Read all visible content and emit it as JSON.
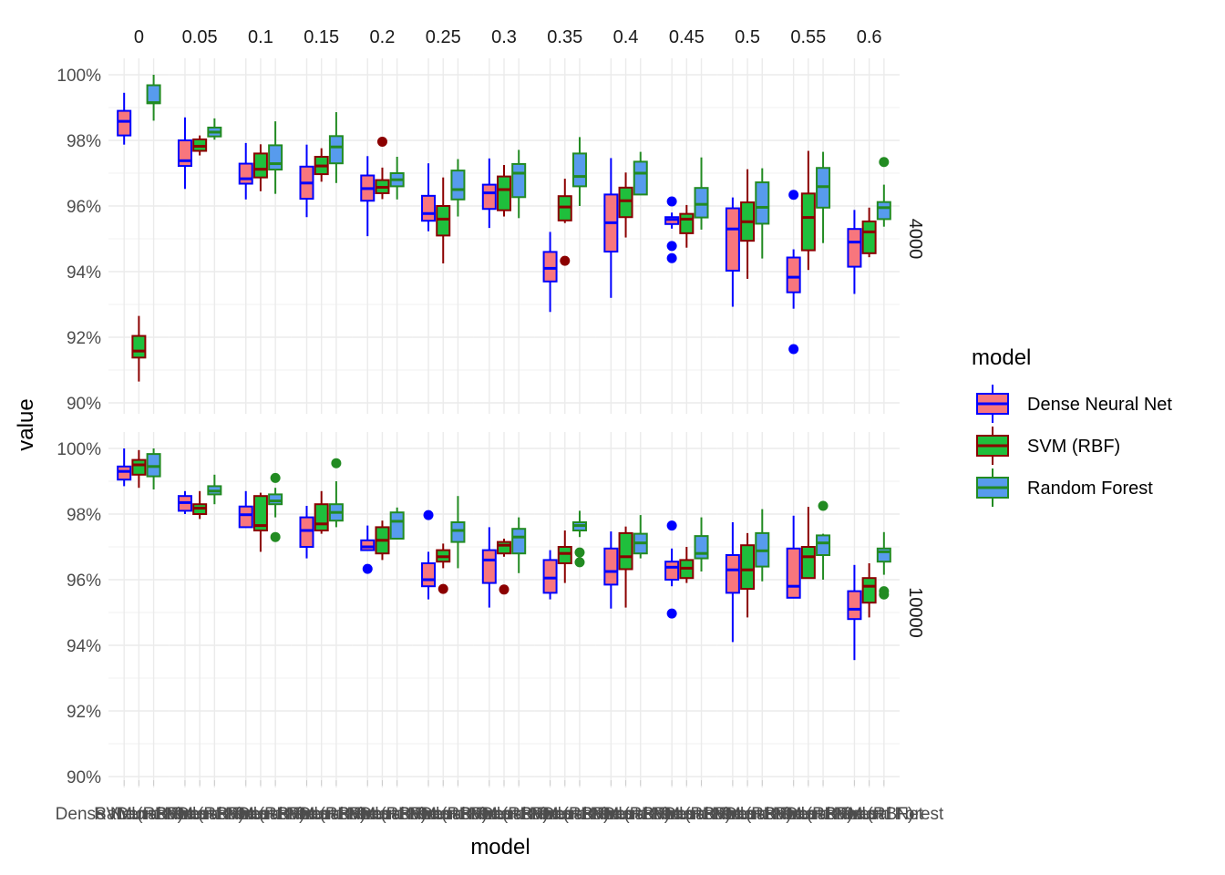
{
  "chart_data": {
    "type": "boxplot",
    "title": "",
    "xlabel": "model",
    "ylabel": "value",
    "ylim": [
      0.9,
      1.0
    ],
    "y_ticks": [
      "90%",
      "92%",
      "94%",
      "96%",
      "98%",
      "100%"
    ],
    "grid": true,
    "legend": {
      "title": "model",
      "position": "right"
    },
    "facet_cols": [
      "0",
      "0.05",
      "0.1",
      "0.15",
      "0.2",
      "0.25",
      "0.3",
      "0.35",
      "0.4",
      "0.45",
      "0.5",
      "0.55",
      "0.6"
    ],
    "facet_rows": [
      "4000",
      "10000"
    ],
    "x_tick_labels": [
      "Dense Neural Net",
      "SVM (RBF)",
      "Random Forest"
    ],
    "series": [
      {
        "name": "Dense Neural Net",
        "fill": "#f8767d",
        "stroke": "#0000ff"
      },
      {
        "name": "SVM (RBF)",
        "fill": "#1fbf3c",
        "stroke": "#8b0000"
      },
      {
        "name": "Random Forest",
        "fill": "#579bed",
        "stroke": "#228b22"
      }
    ],
    "box_summary_order": [
      "lower_whisker",
      "q1",
      "median",
      "q3",
      "upper_whisker"
    ],
    "panels": {
      "4000": [
        [
          [
            0.9787,
            0.9815,
            0.9858,
            0.989,
            0.9945,
            []
          ],
          [
            0.9065,
            0.9138,
            0.9158,
            0.9204,
            0.9265,
            []
          ],
          [
            0.986,
            0.9913,
            0.9915,
            0.9968,
            1.0,
            []
          ]
        ],
        [
          [
            0.9652,
            0.9722,
            0.9738,
            0.98,
            0.987,
            []
          ],
          [
            0.9754,
            0.9768,
            0.9782,
            0.9803,
            0.9815,
            []
          ],
          [
            0.9802,
            0.9812,
            0.9825,
            0.9839,
            0.9867,
            []
          ]
        ],
        [
          [
            0.962,
            0.9668,
            0.9683,
            0.9729,
            0.9792,
            []
          ],
          [
            0.9645,
            0.9687,
            0.9712,
            0.976,
            0.9788,
            []
          ],
          [
            0.9637,
            0.9711,
            0.9729,
            0.9785,
            0.9858,
            []
          ]
        ],
        [
          [
            0.9566,
            0.9622,
            0.967,
            0.972,
            0.9787,
            []
          ],
          [
            0.9674,
            0.9697,
            0.9722,
            0.975,
            0.9776,
            []
          ],
          [
            0.967,
            0.973,
            0.978,
            0.9813,
            0.9886,
            []
          ]
        ],
        [
          [
            0.9508,
            0.9616,
            0.9653,
            0.9693,
            0.9752,
            []
          ],
          [
            0.9621,
            0.9639,
            0.9657,
            0.9679,
            0.9717,
            [
              0.9796
            ]
          ],
          [
            0.962,
            0.966,
            0.968,
            0.97,
            0.975,
            []
          ]
        ],
        [
          [
            0.9523,
            0.9555,
            0.9577,
            0.9631,
            0.973,
            []
          ],
          [
            0.9425,
            0.951,
            0.956,
            0.96,
            0.9687,
            []
          ],
          [
            0.9568,
            0.962,
            0.965,
            0.9708,
            0.9743,
            []
          ]
        ],
        [
          [
            0.9533,
            0.9591,
            0.964,
            0.9665,
            0.9745,
            []
          ],
          [
            0.9568,
            0.9587,
            0.965,
            0.969,
            0.9725,
            []
          ],
          [
            0.9563,
            0.9627,
            0.97,
            0.9728,
            0.9771,
            []
          ]
        ],
        [
          [
            0.9277,
            0.937,
            0.941,
            0.946,
            0.9521,
            []
          ],
          [
            0.9548,
            0.9556,
            0.9597,
            0.963,
            0.9683,
            [
              0.9433
            ]
          ],
          [
            0.96,
            0.966,
            0.969,
            0.976,
            0.981,
            []
          ]
        ],
        [
          [
            0.932,
            0.9461,
            0.9549,
            0.9635,
            0.9746,
            []
          ],
          [
            0.9504,
            0.9566,
            0.9616,
            0.9656,
            0.9702,
            []
          ],
          [
            0.9633,
            0.9635,
            0.97,
            0.9735,
            0.9765,
            []
          ]
        ],
        [
          [
            0.9531,
            0.9545,
            0.9559,
            0.9566,
            0.958,
            [
              0.9614,
              0.9478,
              0.9441
            ]
          ],
          [
            0.9473,
            0.9517,
            0.956,
            0.9576,
            0.9603,
            []
          ],
          [
            0.9528,
            0.9565,
            0.9605,
            0.9655,
            0.9748,
            []
          ]
        ],
        [
          [
            0.9293,
            0.9403,
            0.953,
            0.9593,
            0.9626,
            []
          ],
          [
            0.9378,
            0.9494,
            0.9552,
            0.9611,
            0.9712,
            []
          ],
          [
            0.944,
            0.9546,
            0.9596,
            0.9672,
            0.9715,
            []
          ]
        ],
        [
          [
            0.9287,
            0.9337,
            0.9383,
            0.9443,
            0.9468,
            [
              0.9634,
              0.9164
            ]
          ],
          [
            0.9405,
            0.9465,
            0.9565,
            0.9638,
            0.9768,
            []
          ],
          [
            0.9487,
            0.9595,
            0.9659,
            0.9716,
            0.9765,
            []
          ]
        ],
        [
          [
            0.9332,
            0.9415,
            0.949,
            0.953,
            0.9588,
            []
          ],
          [
            0.9444,
            0.9456,
            0.9521,
            0.9553,
            0.9595,
            []
          ],
          [
            0.9537,
            0.956,
            0.9595,
            0.9612,
            0.9665,
            [
              0.9734
            ]
          ]
        ]
      ],
      "10000": [
        [
          [
            0.9885,
            0.9905,
            0.993,
            0.9945,
            1.0,
            []
          ],
          [
            0.988,
            0.992,
            0.995,
            0.9965,
            0.9995,
            []
          ],
          [
            0.9875,
            0.9915,
            0.9945,
            0.9983,
            1.0,
            []
          ]
        ],
        [
          [
            0.98,
            0.981,
            0.9835,
            0.9855,
            0.987,
            []
          ],
          [
            0.9785,
            0.98,
            0.9818,
            0.983,
            0.987,
            []
          ],
          [
            0.983,
            0.986,
            0.987,
            0.9885,
            0.992,
            []
          ]
        ],
        [
          [
            0.976,
            0.976,
            0.9798,
            0.9823,
            0.987,
            []
          ],
          [
            0.9685,
            0.975,
            0.9765,
            0.9855,
            0.9865,
            []
          ],
          [
            0.979,
            0.983,
            0.984,
            0.986,
            0.988,
            [
              0.991,
              0.973
            ]
          ]
        ],
        [
          [
            0.9665,
            0.97,
            0.975,
            0.979,
            0.9825,
            []
          ],
          [
            0.974,
            0.975,
            0.977,
            0.983,
            0.987,
            []
          ],
          [
            0.976,
            0.978,
            0.9805,
            0.983,
            0.99,
            [
              0.9955
            ]
          ]
        ],
        [
          [
            0.969,
            0.969,
            0.97,
            0.972,
            0.9765,
            [
              0.9633
            ]
          ],
          [
            0.966,
            0.968,
            0.972,
            0.976,
            0.978,
            []
          ],
          [
            0.974,
            0.9725,
            0.9778,
            0.9805,
            0.982,
            []
          ]
        ],
        [
          [
            0.954,
            0.958,
            0.96,
            0.965,
            0.9685,
            [
              0.9797
            ]
          ],
          [
            0.9635,
            0.9655,
            0.967,
            0.969,
            0.971,
            [
              0.9572
            ]
          ],
          [
            0.9635,
            0.9715,
            0.975,
            0.9775,
            0.9855,
            []
          ]
        ],
        [
          [
            0.9515,
            0.959,
            0.966,
            0.969,
            0.976,
            []
          ],
          [
            0.967,
            0.968,
            0.9705,
            0.9715,
            0.9725,
            [
              0.957
            ]
          ],
          [
            0.962,
            0.968,
            0.973,
            0.9755,
            0.979,
            []
          ]
        ],
        [
          [
            0.954,
            0.956,
            0.9605,
            0.966,
            0.969,
            []
          ],
          [
            0.959,
            0.965,
            0.968,
            0.97,
            0.975,
            []
          ],
          [
            0.973,
            0.975,
            0.9765,
            0.9775,
            0.981,
            [
              0.9683,
              0.9653
            ]
          ]
        ],
        [
          [
            0.9512,
            0.9585,
            0.9625,
            0.9695,
            0.9747,
            []
          ],
          [
            0.9515,
            0.9632,
            0.967,
            0.9742,
            0.9762,
            []
          ],
          [
            0.9665,
            0.968,
            0.9712,
            0.974,
            0.9797,
            []
          ]
        ],
        [
          [
            0.958,
            0.96,
            0.9638,
            0.9655,
            0.9695,
            [
              0.9765,
              0.9497
            ]
          ],
          [
            0.959,
            0.9605,
            0.9635,
            0.966,
            0.97,
            []
          ],
          [
            0.9625,
            0.9665,
            0.968,
            0.9733,
            0.979,
            []
          ]
        ],
        [
          [
            0.941,
            0.956,
            0.963,
            0.9675,
            0.9775,
            []
          ],
          [
            0.9485,
            0.9572,
            0.963,
            0.9705,
            0.9742,
            []
          ],
          [
            0.9595,
            0.964,
            0.9688,
            0.9742,
            0.9815,
            []
          ]
        ],
        [
          [
            0.9545,
            0.9545,
            0.958,
            0.9695,
            0.9795,
            []
          ],
          [
            0.9612,
            0.9605,
            0.967,
            0.97,
            0.9822,
            []
          ],
          [
            0.96,
            0.9675,
            0.9712,
            0.9735,
            0.974,
            [
              0.9825
            ]
          ]
        ],
        [
          [
            0.9355,
            0.948,
            0.951,
            0.9565,
            0.9645,
            []
          ],
          [
            0.9485,
            0.953,
            0.958,
            0.9605,
            0.965,
            []
          ],
          [
            0.9615,
            0.9655,
            0.9685,
            0.9695,
            0.9745,
            [
              0.9565,
              0.9555
            ]
          ]
        ]
      ]
    }
  }
}
